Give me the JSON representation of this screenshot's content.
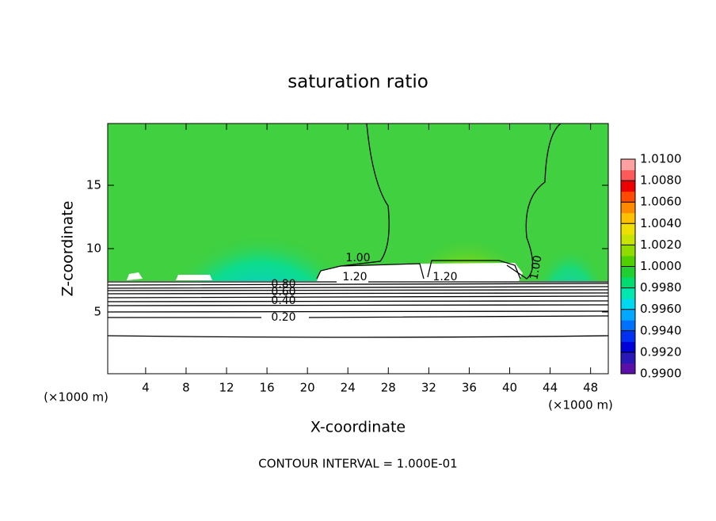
{
  "chart_data": {
    "type": "contour",
    "title": "saturation ratio",
    "xlabel": "X-coordinate",
    "ylabel": "Z-coordinate",
    "x_unit": "(×1000 m)",
    "x_unit_right": "(×1000 m)",
    "footer": "CONTOUR INTERVAL = 1.000E-01",
    "xlim": [
      0.25,
      49.75
    ],
    "ylim": [
      0.125,
      19.875
    ],
    "xticks": [
      4,
      8,
      12,
      16,
      20,
      24,
      28,
      32,
      36,
      40,
      44,
      48
    ],
    "yticks": [
      5,
      10,
      15
    ],
    "colorbar": {
      "clim": [
        0.99,
        1.01
      ],
      "ticks": [
        {
          "value": 0.99,
          "label": "0.9900"
        },
        {
          "value": 0.992,
          "label": "0.9920"
        },
        {
          "value": 0.994,
          "label": "0.9940"
        },
        {
          "value": 0.996,
          "label": "0.9960"
        },
        {
          "value": 0.998,
          "label": "0.9980"
        },
        {
          "value": 1.0,
          "label": "1.0000"
        },
        {
          "value": 1.002,
          "label": "1.0020"
        },
        {
          "value": 1.004,
          "label": "1.0040"
        },
        {
          "value": 1.006,
          "label": "1.0060"
        },
        {
          "value": 1.008,
          "label": "1.0080"
        },
        {
          "value": 1.01,
          "label": "1.0100"
        }
      ],
      "colors": [
        "#5a10a8",
        "#2818b8",
        "#0000d8",
        "#0030f0",
        "#0070ff",
        "#00a8ff",
        "#00d8f0",
        "#00e8b0",
        "#00dc70",
        "#20d030",
        "#50d000",
        "#90dc00",
        "#c8e400",
        "#f0e000",
        "#ffc000",
        "#ff8a00",
        "#ff4a00",
        "#ee0000",
        "#ff5a5a",
        "#ffa0a0"
      ]
    },
    "contour_labels": [
      {
        "value": 1.0,
        "label": "1.00"
      },
      {
        "value": 1.2,
        "label": "1.20"
      },
      {
        "value": 1.2,
        "label": "1.20"
      },
      {
        "value": 1.0,
        "label": "1.00"
      },
      {
        "value": 0.8,
        "label": "0.80"
      },
      {
        "value": 0.6,
        "label": "0.60"
      },
      {
        "value": 0.4,
        "label": "0.40"
      },
      {
        "value": 0.2,
        "label": "0.20"
      }
    ]
  }
}
